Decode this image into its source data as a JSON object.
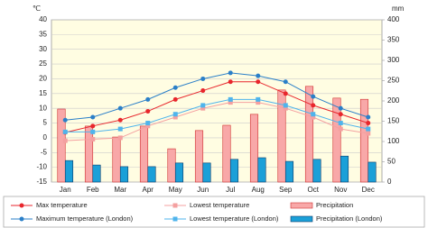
{
  "chart_data": {
    "type": "combo",
    "y_label": "℃",
    "y2_label": "mm",
    "categories": [
      "Jan",
      "Feb",
      "Mar",
      "Apr",
      "May",
      "Jun",
      "Jul",
      "Aug",
      "Sep",
      "Oct",
      "Nov",
      "Dec"
    ],
    "ylim": [
      -15,
      40
    ],
    "yticks": [
      -15,
      -10,
      -5,
      0,
      5,
      10,
      15,
      20,
      25,
      30,
      35,
      40
    ],
    "y2lim": [
      0,
      400
    ],
    "y2ticks": [
      0,
      50,
      100,
      150,
      200,
      250,
      300,
      350,
      400
    ],
    "grid": true,
    "series": [
      {
        "name": "Max temperature",
        "kind": "line",
        "marker": "circle",
        "color": "#e8262c",
        "values": [
          1.8,
          4,
          6,
          9,
          13,
          16,
          19,
          19,
          15,
          11,
          8,
          5
        ]
      },
      {
        "name": "Lowest temperature",
        "kind": "line",
        "marker": "square",
        "color": "#f4a0a0",
        "values": [
          -1,
          -0.5,
          0,
          4,
          7,
          10,
          12,
          12,
          10,
          7,
          3,
          1.5
        ]
      },
      {
        "name": "Precipitation",
        "kind": "bar",
        "axis": "y2",
        "color": "#f8a8a8",
        "values": [
          180,
          138,
          111,
          138,
          82,
          127,
          140,
          167,
          227,
          236,
          207,
          204
        ]
      },
      {
        "name": "Maximum temperature (London)",
        "kind": "line",
        "marker": "circle",
        "color": "#2a7fc8",
        "values": [
          6,
          7,
          10,
          13,
          17,
          20,
          22,
          21,
          19,
          14,
          10,
          7
        ]
      },
      {
        "name": "Lowest temperature (London)",
        "kind": "line",
        "marker": "square",
        "color": "#4fb4ec",
        "values": [
          2,
          2,
          3,
          5,
          8,
          11,
          13,
          13,
          11,
          8,
          5,
          3
        ]
      },
      {
        "name": "Precipitation (London)",
        "kind": "bar",
        "axis": "y2",
        "color": "#1ba0d8",
        "values": [
          53,
          42,
          38,
          38,
          47,
          47,
          56,
          60,
          51,
          56,
          64,
          49
        ]
      }
    ]
  }
}
